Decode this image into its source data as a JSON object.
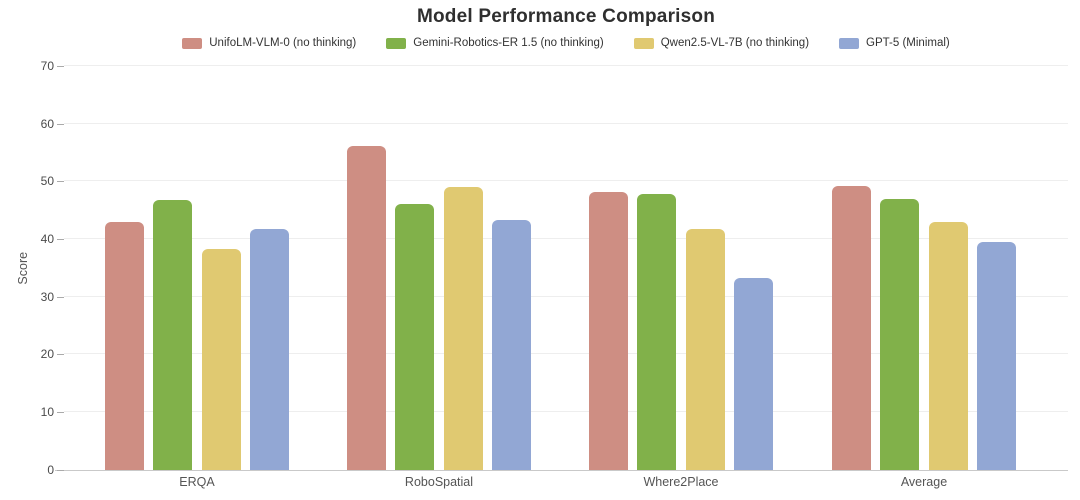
{
  "title": "Model Performance Comparison",
  "chart_data": {
    "type": "bar",
    "title": "Model Performance Comparison",
    "categories": [
      "ERQA",
      "RoboSpatial",
      "Where2Place",
      "Average"
    ],
    "series": [
      {
        "name": "UnifoLM-VLM-0 (no thinking)",
        "color": "#ce8e83",
        "values": [
          43.0,
          56.1,
          48.1,
          49.1
        ]
      },
      {
        "name": "Gemini-Robotics-ER 1.5 (no thinking)",
        "color": "#81b14a",
        "values": [
          46.8,
          46.1,
          47.8,
          46.9
        ]
      },
      {
        "name": "Qwen2.5-VL-7B (no thinking)",
        "color": "#e0c971",
        "values": [
          38.3,
          49.0,
          41.8,
          43.0
        ]
      },
      {
        "name": "GPT-5 (Minimal)",
        "color": "#92a7d4",
        "values": [
          41.8,
          43.3,
          33.3,
          39.5
        ]
      }
    ],
    "xlabel": "",
    "ylabel": "Score",
    "ylim": [
      0,
      70
    ],
    "yticks": [
      0,
      10,
      20,
      30,
      40,
      50,
      60,
      70
    ],
    "grid": true,
    "legend_position": "top-center",
    "colors": {
      "background": "#ffffff",
      "gridline": "#eeeeee",
      "axis_line": "#c9c9c9",
      "tick_text": "#4a4a4a",
      "title_text": "#2f2f2f"
    }
  }
}
